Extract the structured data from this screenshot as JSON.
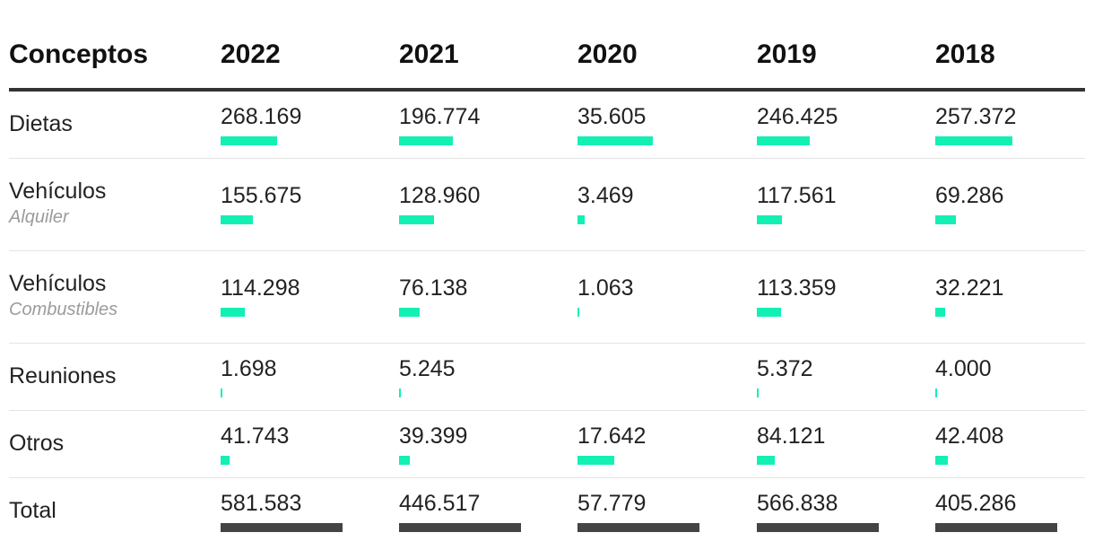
{
  "colors": {
    "bar": "#13f0b4",
    "total_bar": "#444444"
  },
  "chart_data": {
    "type": "table",
    "columns": [
      "Conceptos",
      "2022",
      "2021",
      "2020",
      "2019",
      "2018"
    ],
    "rows": [
      {
        "label": "Dietas",
        "sublabel": "",
        "values": [
          268169,
          196774,
          35605,
          246425,
          257372
        ],
        "display": [
          "268.169",
          "196.774",
          "35.605",
          "246.425",
          "257.372"
        ],
        "bar_fraction": [
          0.461,
          0.441,
          0.616,
          0.435,
          0.635
        ]
      },
      {
        "label": "Vehículos",
        "sublabel": "Alquiler",
        "values": [
          155675,
          128960,
          3469,
          117561,
          69286
        ],
        "display": [
          "155.675",
          "128.960",
          "3.469",
          "117.561",
          "69.286"
        ],
        "bar_fraction": [
          0.268,
          0.289,
          0.06,
          0.207,
          0.171
        ]
      },
      {
        "label": "Vehículos",
        "sublabel": "Combustibles",
        "values": [
          114298,
          76138,
          1063,
          113359,
          32221
        ],
        "display": [
          "114.298",
          "76.138",
          "1.063",
          "113.359",
          "32.221"
        ],
        "bar_fraction": [
          0.197,
          0.171,
          0.018,
          0.2,
          0.08
        ]
      },
      {
        "label": "Reuniones",
        "sublabel": "",
        "values": [
          1698,
          5245,
          null,
          5372,
          4000
        ],
        "display": [
          "1.698",
          "5.245",
          "",
          "5.372",
          "4.000"
        ],
        "bar_fraction": [
          0.015,
          0.015,
          0,
          0.015,
          0.015
        ]
      },
      {
        "label": "Otros",
        "sublabel": "",
        "values": [
          41743,
          39399,
          17642,
          84121,
          42408
        ],
        "display": [
          "41.743",
          "39.399",
          "17.642",
          "84.121",
          "42.408"
        ],
        "bar_fraction": [
          0.072,
          0.088,
          0.305,
          0.148,
          0.105
        ]
      },
      {
        "label": "Total",
        "sublabel": "",
        "values": [
          581583,
          446517,
          57779,
          566838,
          405286
        ],
        "display": [
          "581.583",
          "446.517",
          "57.779",
          "566.838",
          "405.286"
        ],
        "bar_fraction": [
          1,
          1,
          1,
          1,
          1
        ],
        "is_total": true
      }
    ]
  }
}
